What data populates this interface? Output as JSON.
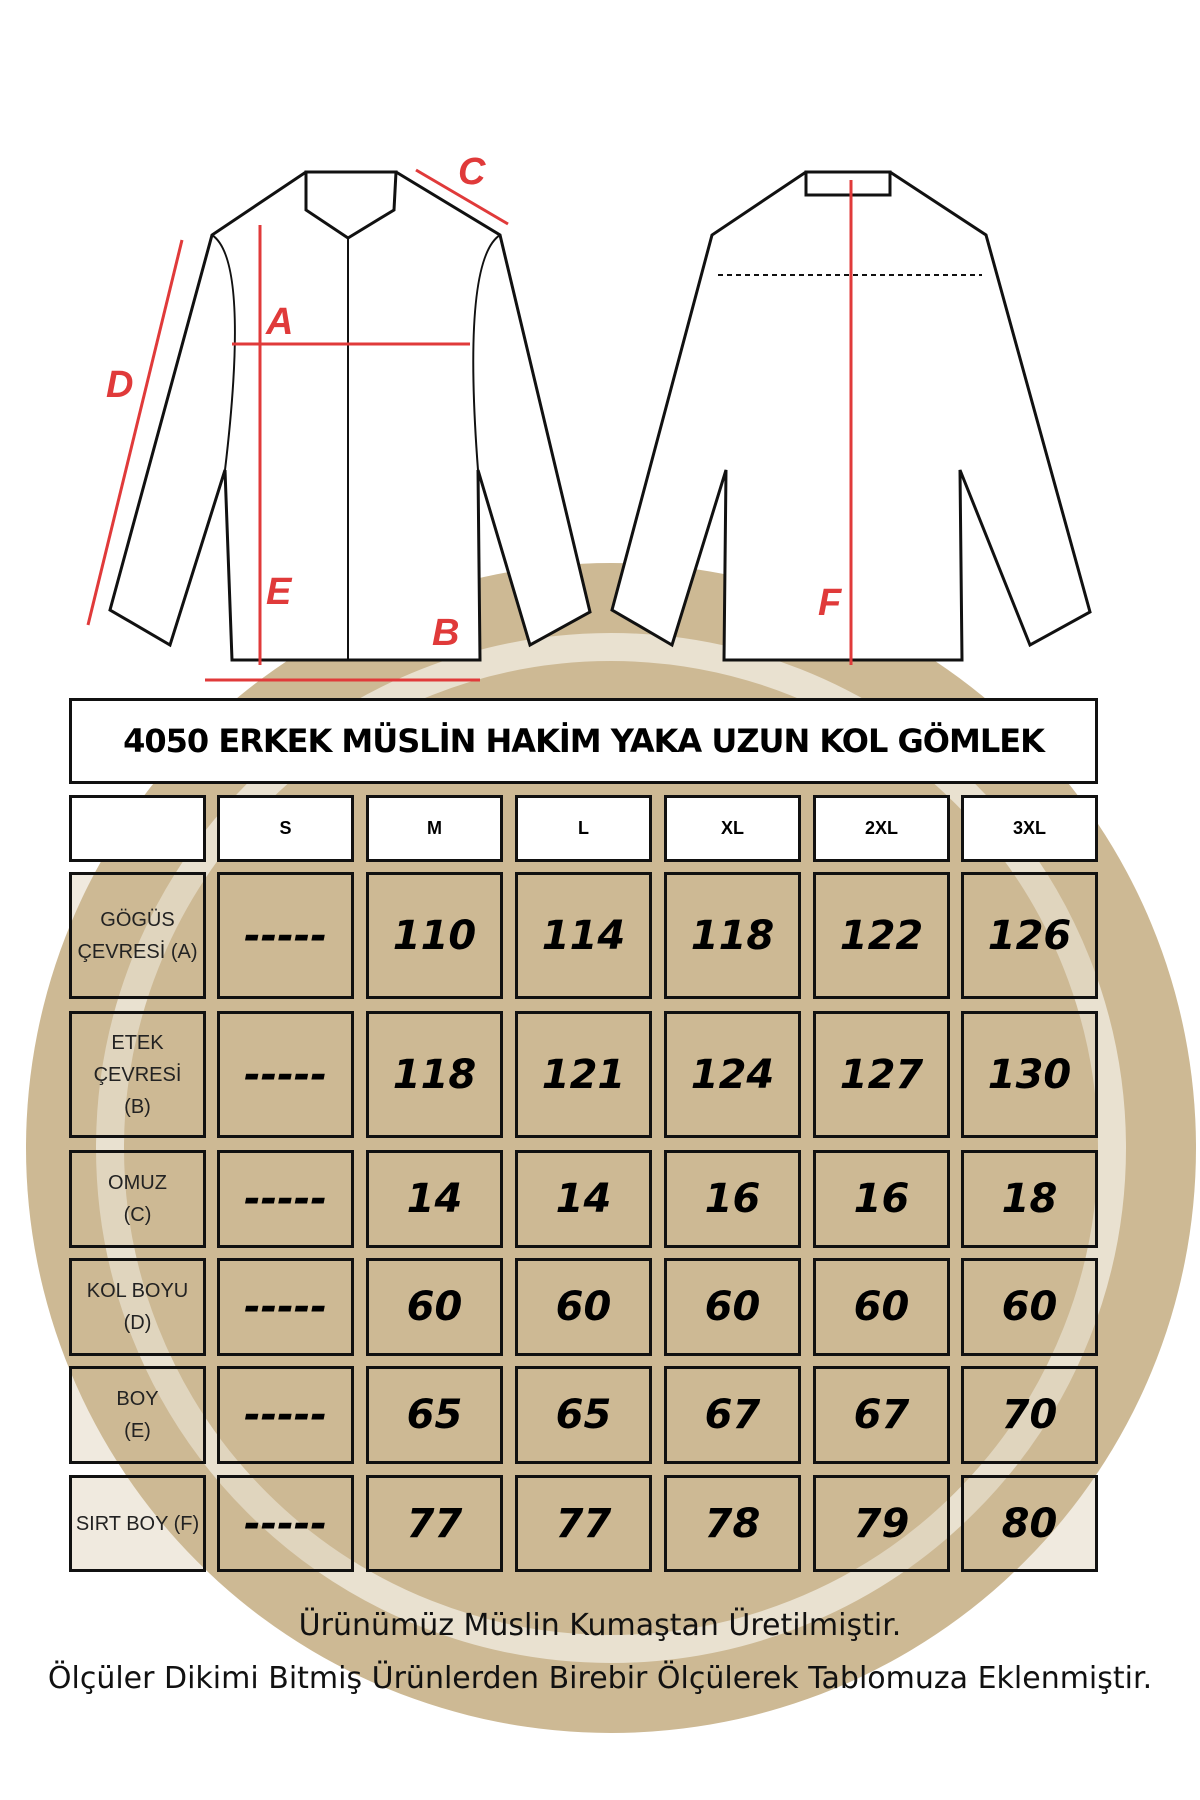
{
  "diagram_labels": {
    "A": "A",
    "B": "B",
    "C": "C",
    "D": "D",
    "E": "E",
    "F": "F"
  },
  "title": "4050 ERKEK MÜSLİN HAKİM YAKA UZUN KOL GÖMLEK",
  "sizes": [
    "S",
    "M",
    "L",
    "XL",
    "2XL",
    "3XL"
  ],
  "rows": [
    {
      "label": "GÖGÜS\nÇEVRESİ (A)",
      "values": [
        "-----",
        "110",
        "114",
        "118",
        "122",
        "126"
      ]
    },
    {
      "label": "ETEK ÇEVRESİ\n(B)",
      "values": [
        "-----",
        "118",
        "121",
        "124",
        "127",
        "130"
      ]
    },
    {
      "label": "OMUZ\n(C)",
      "values": [
        "-----",
        "14",
        "14",
        "16",
        "16",
        "18"
      ]
    },
    {
      "label": "KOL BOYU (D)",
      "values": [
        "-----",
        "60",
        "60",
        "60",
        "60",
        "60"
      ]
    },
    {
      "label": "BOY\n(E)",
      "values": [
        "-----",
        "65",
        "65",
        "67",
        "67",
        "70"
      ]
    },
    {
      "label": "SIRT BOY (F)",
      "values": [
        "-----",
        "77",
        "77",
        "78",
        "79",
        "80"
      ]
    }
  ],
  "footer": {
    "line1": "Ürünümüz Müslin Kumaştan Üretilmiştir.",
    "line2": "Ölçüler Dikimi Bitmiş Ürünlerden Birebir Ölçülerek Tablomuza Eklenmiştir."
  },
  "colors": {
    "measure": "#e03a3a",
    "watermark": "#cdb994"
  }
}
